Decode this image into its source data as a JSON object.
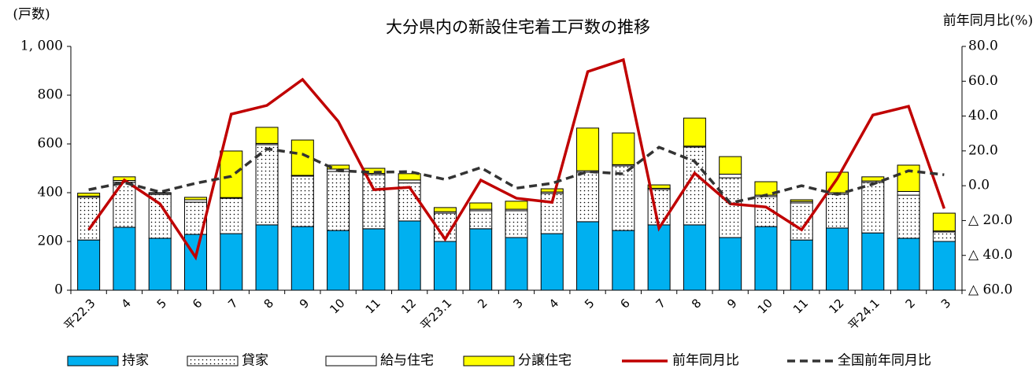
{
  "chart_data": {
    "type": "bar",
    "title": "大分県内の新設住宅着工戸数の推移",
    "y_label": "(戸数)",
    "y2_label": "前年同月比(%)",
    "categories": [
      "平22.3",
      "4",
      "5",
      "6",
      "7",
      "8",
      "9",
      "10",
      "11",
      "12",
      "平23.1",
      "2",
      "3",
      "4",
      "5",
      "6",
      "7",
      "8",
      "9",
      "10",
      "11",
      "12",
      "平24.1",
      "2",
      "3"
    ],
    "ylim": [
      0,
      1000
    ],
    "yticks": [
      0,
      200,
      400,
      600,
      800,
      {
        "value": 1000,
        "label": "1, 000"
      }
    ],
    "y2lim": [
      -60,
      80
    ],
    "y2ticks": [
      {
        "value": -60,
        "label": "△ 60.0"
      },
      {
        "value": -40,
        "label": "△ 40.0"
      },
      {
        "value": -20,
        "label": "△ 20.0"
      },
      {
        "value": 0,
        "label": "0.0"
      },
      {
        "value": 20,
        "label": "20.0"
      },
      {
        "value": 40,
        "label": "40.0"
      },
      {
        "value": 60,
        "label": "60.0"
      },
      {
        "value": 80,
        "label": "80.0"
      }
    ],
    "stacked": true,
    "series": [
      {
        "name": "持家",
        "color": "#00b0f0",
        "values": [
          206,
          258,
          213,
          229,
          232,
          268,
          261,
          245,
          252,
          284,
          200,
          252,
          216,
          232,
          281,
          245,
          268,
          268,
          216,
          261,
          206,
          255,
          235,
          213,
          200
        ]
      },
      {
        "name": "貸家",
        "color": "#ffffff",
        "pattern": "dots",
        "values": [
          175,
          185,
          180,
          132,
          145,
          329,
          207,
          242,
          222,
          156,
          116,
          74,
          110,
          165,
          203,
          265,
          145,
          319,
          245,
          123,
          152,
          139,
          207,
          177,
          39
        ]
      },
      {
        "name": "給与住宅",
        "color": "#ffffff",
        "values": [
          5,
          7,
          5,
          10,
          3,
          5,
          3,
          10,
          5,
          12,
          6,
          6,
          6,
          6,
          6,
          5,
          5,
          4,
          15,
          6,
          6,
          6,
          6,
          15,
          4
        ]
      },
      {
        "name": "分譲住宅",
        "color": "#ffff00",
        "values": [
          12,
          15,
          2,
          10,
          191,
          66,
          145,
          16,
          21,
          26,
          17,
          26,
          33,
          13,
          175,
          130,
          14,
          115,
          72,
          55,
          7,
          84,
          17,
          108,
          73
        ]
      },
      {
        "name": "前年同月比",
        "type": "line",
        "axis": "y2",
        "color": "#c00000",
        "values": [
          -25.3,
          3.2,
          -10.4,
          -41.1,
          41.1,
          46.1,
          61.0,
          37.0,
          -2.3,
          -0.9,
          -30.7,
          3.2,
          -7.2,
          -9.5,
          65.5,
          72.3,
          -24.4,
          7.2,
          -10.4,
          -12.2,
          -25.3,
          4.1,
          40.6,
          45.6,
          -13.1
        ]
      },
      {
        "name": "全国前年同月比",
        "type": "line",
        "axis": "y2",
        "color": "#333333",
        "dash": true,
        "values": [
          -2.3,
          1.8,
          -3.6,
          1.4,
          5.4,
          21.2,
          18.1,
          8.6,
          7.7,
          8.1,
          3.6,
          10.4,
          -1.4,
          1.4,
          8.1,
          6.8,
          22.1,
          14.0,
          -9.9,
          -5.4,
          0.0,
          -5.0,
          0.9,
          8.6,
          6.3
        ]
      }
    ]
  }
}
